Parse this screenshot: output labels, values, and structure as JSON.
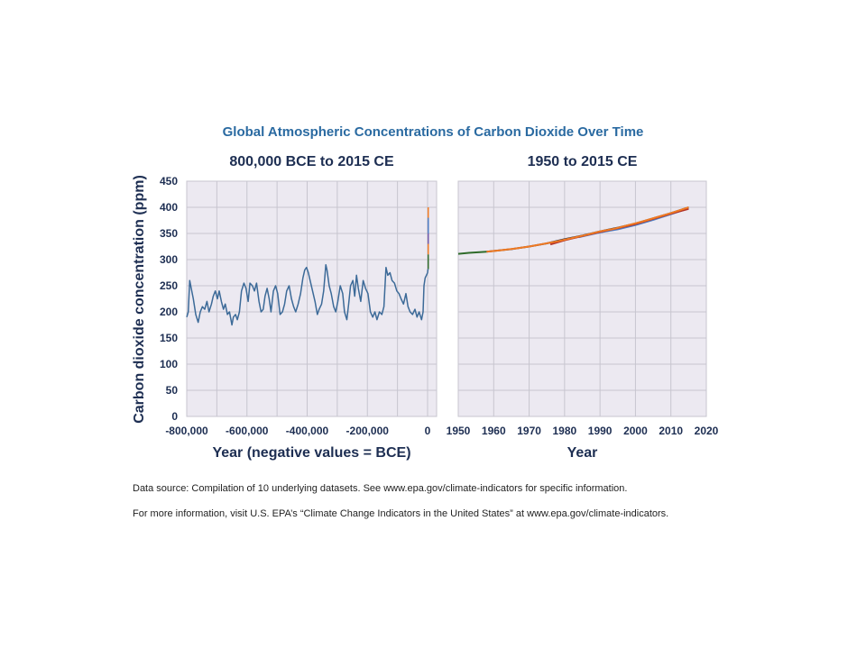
{
  "chart_data": {
    "type": "line",
    "title": "Global Atmospheric Concentrations of Carbon Dioxide Over Time",
    "ylabel": "Carbon dioxide concentration (ppm)",
    "ylim": [
      0,
      450
    ],
    "yticks": [
      0,
      50,
      100,
      150,
      200,
      250,
      300,
      350,
      400,
      450
    ],
    "colors": {
      "background": "#ffffff",
      "plot_bg": "#ece9f1",
      "grid": "#c7c5cf",
      "title": "#2a6aa1",
      "text": "#1d2e52",
      "ice_core": "#3c6a98",
      "green": "#2f6b2a",
      "orange": "#f07a23",
      "purple": "#6f5bb0",
      "red": "#b2332a",
      "blue": "#4e7fc5",
      "dark": "#30313a"
    },
    "grid": true,
    "panels": [
      {
        "subtitle": "800,000 BCE to 2015 CE",
        "xlabel": "Year (negative values = BCE)",
        "xlim": [
          -800000,
          30000
        ],
        "xticks": [
          "-800,000",
          "-600,000",
          "-400,000",
          "-200,000",
          "0"
        ],
        "xtick_values": [
          -800000,
          -600000,
          -400000,
          -200000,
          0
        ],
        "series": [
          {
            "color": "ice_core",
            "points": [
              [
                -800000,
                190
              ],
              [
                -795000,
                200
              ],
              [
                -790000,
                260
              ],
              [
                -785000,
                245
              ],
              [
                -778000,
                225
              ],
              [
                -770000,
                195
              ],
              [
                -762000,
                180
              ],
              [
                -755000,
                200
              ],
              [
                -748000,
                210
              ],
              [
                -740000,
                205
              ],
              [
                -733000,
                220
              ],
              [
                -726000,
                200
              ],
              [
                -718000,
                215
              ],
              [
                -712000,
                230
              ],
              [
                -705000,
                240
              ],
              [
                -698000,
                225
              ],
              [
                -692000,
                240
              ],
              [
                -685000,
                220
              ],
              [
                -678000,
                205
              ],
              [
                -672000,
                215
              ],
              [
                -665000,
                195
              ],
              [
                -658000,
                200
              ],
              [
                -650000,
                175
              ],
              [
                -645000,
                190
              ],
              [
                -638000,
                195
              ],
              [
                -632000,
                185
              ],
              [
                -625000,
                200
              ],
              [
                -618000,
                240
              ],
              [
                -610000,
                255
              ],
              [
                -603000,
                245
              ],
              [
                -596000,
                220
              ],
              [
                -590000,
                255
              ],
              [
                -582000,
                250
              ],
              [
                -575000,
                240
              ],
              [
                -568000,
                255
              ],
              [
                -560000,
                220
              ],
              [
                -553000,
                200
              ],
              [
                -546000,
                205
              ],
              [
                -540000,
                230
              ],
              [
                -533000,
                245
              ],
              [
                -526000,
                225
              ],
              [
                -520000,
                200
              ],
              [
                -512000,
                240
              ],
              [
                -505000,
                250
              ],
              [
                -498000,
                235
              ],
              [
                -490000,
                195
              ],
              [
                -482000,
                200
              ],
              [
                -475000,
                215
              ],
              [
                -468000,
                240
              ],
              [
                -460000,
                250
              ],
              [
                -452000,
                225
              ],
              [
                -445000,
                210
              ],
              [
                -438000,
                200
              ],
              [
                -430000,
                215
              ],
              [
                -422000,
                235
              ],
              [
                -414000,
                265
              ],
              [
                -408000,
                280
              ],
              [
                -402000,
                285
              ],
              [
                -396000,
                275
              ],
              [
                -390000,
                260
              ],
              [
                -382000,
                240
              ],
              [
                -374000,
                220
              ],
              [
                -366000,
                195
              ],
              [
                -360000,
                205
              ],
              [
                -352000,
                215
              ],
              [
                -345000,
                240
              ],
              [
                -338000,
                290
              ],
              [
                -334000,
                280
              ],
              [
                -327000,
                250
              ],
              [
                -320000,
                235
              ],
              [
                -312000,
                210
              ],
              [
                -305000,
                200
              ],
              [
                -298000,
                220
              ],
              [
                -290000,
                250
              ],
              [
                -282000,
                235
              ],
              [
                -276000,
                200
              ],
              [
                -268000,
                185
              ],
              [
                -262000,
                215
              ],
              [
                -256000,
                250
              ],
              [
                -248000,
                260
              ],
              [
                -242000,
                230
              ],
              [
                -236000,
                270
              ],
              [
                -230000,
                245
              ],
              [
                -222000,
                220
              ],
              [
                -214000,
                260
              ],
              [
                -206000,
                245
              ],
              [
                -198000,
                235
              ],
              [
                -190000,
                200
              ],
              [
                -182000,
                190
              ],
              [
                -175000,
                200
              ],
              [
                -168000,
                185
              ],
              [
                -160000,
                200
              ],
              [
                -152000,
                195
              ],
              [
                -145000,
                210
              ],
              [
                -138000,
                285
              ],
              [
                -132000,
                270
              ],
              [
                -125000,
                275
              ],
              [
                -118000,
                260
              ],
              [
                -110000,
                255
              ],
              [
                -102000,
                240
              ],
              [
                -95000,
                235
              ],
              [
                -88000,
                225
              ],
              [
                -80000,
                215
              ],
              [
                -72000,
                235
              ],
              [
                -65000,
                210
              ],
              [
                -58000,
                200
              ],
              [
                -50000,
                195
              ],
              [
                -42000,
                205
              ],
              [
                -35000,
                190
              ],
              [
                -28000,
                200
              ],
              [
                -20000,
                185
              ],
              [
                -15000,
                200
              ],
              [
                -12000,
                250
              ],
              [
                -8000,
                265
              ],
              [
                -4000,
                270
              ],
              [
                0,
                275
              ],
              [
                1000,
                280
              ],
              [
                2000,
                282
              ]
            ]
          },
          {
            "color": "green",
            "points": [
              [
                2000,
                282
              ],
              [
                2005,
                290
              ],
              [
                2009,
                310
              ]
            ]
          },
          {
            "color": "orange",
            "points": [
              [
                2009,
                310
              ],
              [
                2012,
                340
              ],
              [
                2015,
                400
              ]
            ]
          },
          {
            "color": "purple",
            "points": [
              [
                2010,
                330
              ],
              [
                2014,
                375
              ]
            ]
          },
          {
            "color": "blue",
            "points": [
              [
                2012,
                350
              ],
              [
                2015,
                380
              ]
            ]
          }
        ]
      },
      {
        "subtitle": "1950 to 2015 CE",
        "xlabel": "Year",
        "xlim": [
          1950,
          2020
        ],
        "xticks": [
          "1950",
          "1960",
          "1970",
          "1980",
          "1990",
          "2000",
          "2010",
          "2020"
        ],
        "xtick_values": [
          1950,
          1960,
          1970,
          1980,
          1990,
          2000,
          2010,
          2020
        ],
        "series": [
          {
            "color": "green",
            "points": [
              [
                1950,
                311
              ],
              [
                1953,
                313
              ],
              [
                1958,
                315
              ]
            ]
          },
          {
            "color": "dark",
            "points": [
              [
                1958,
                315
              ],
              [
                1965,
                320
              ],
              [
                1970,
                325
              ],
              [
                1975,
                331
              ],
              [
                1980,
                339
              ],
              [
                1985,
                346
              ],
              [
                1990,
                354
              ],
              [
                1995,
                361
              ],
              [
                2000,
                369
              ],
              [
                2005,
                379
              ],
              [
                2010,
                389
              ],
              [
                2015,
                400
              ]
            ]
          },
          {
            "color": "purple",
            "points": [
              [
                1976,
                331
              ],
              [
                1980,
                338
              ],
              [
                1985,
                345
              ],
              [
                1990,
                352
              ],
              [
                1995,
                359
              ],
              [
                2000,
                367
              ],
              [
                2005,
                377
              ],
              [
                2010,
                387
              ],
              [
                2014,
                396
              ]
            ]
          },
          {
            "color": "blue",
            "points": [
              [
                1984,
                343
              ],
              [
                1990,
                352
              ],
              [
                1995,
                358
              ],
              [
                2000,
                366
              ],
              [
                2005,
                376
              ],
              [
                2010,
                387
              ],
              [
                2015,
                398
              ]
            ]
          },
          {
            "color": "red",
            "points": [
              [
                1976,
                329
              ],
              [
                1980,
                337
              ],
              [
                1985,
                345
              ],
              [
                1990,
                353
              ],
              [
                1995,
                360
              ],
              [
                2000,
                368
              ],
              [
                2005,
                378
              ],
              [
                2010,
                388
              ],
              [
                2015,
                397
              ]
            ]
          },
          {
            "color": "orange",
            "points": [
              [
                1958,
                315
              ],
              [
                1962,
                318
              ],
              [
                1966,
                321
              ],
              [
                1970,
                325
              ],
              [
                1974,
                330
              ],
              [
                1978,
                335
              ],
              [
                1982,
                341
              ],
              [
                1986,
                347
              ],
              [
                1990,
                354
              ],
              [
                1994,
                359
              ],
              [
                1998,
                366
              ],
              [
                2002,
                373
              ],
              [
                2006,
                381
              ],
              [
                2010,
                389
              ],
              [
                2015,
                400
              ]
            ]
          }
        ]
      }
    ]
  },
  "notes": {
    "source": "Data source: Compilation of 10 underlying datasets. See www.epa.gov/climate-indicators for specific information.",
    "info": "For more information, visit U.S. EPA’s “Climate Change Indicators in the United States” at www.epa.gov/climate-indicators."
  }
}
